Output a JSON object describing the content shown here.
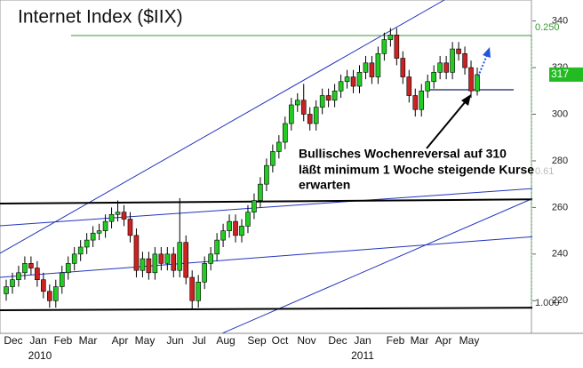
{
  "chart_data": {
    "type": "candlestick",
    "title": "Internet Index ($IIX)",
    "months": [
      "Dec",
      "Jan",
      "Feb",
      "Mar",
      "Apr",
      "May",
      "Jun",
      "Jul",
      "Aug",
      "Sep",
      "Oct",
      "Nov",
      "Dec",
      "Jan",
      "Feb",
      "Mar",
      "Apr",
      "May"
    ],
    "years": [
      "2010",
      "2011"
    ],
    "open": [
      223,
      226,
      229,
      232,
      236,
      234,
      229,
      224,
      220,
      226,
      232,
      236,
      240,
      243,
      246,
      249,
      250,
      254,
      257,
      258,
      255,
      248,
      233,
      238,
      232,
      240,
      236,
      240,
      233,
      245,
      230,
      220,
      228,
      236,
      240,
      246,
      250,
      254,
      248,
      252,
      258,
      263,
      270,
      278,
      284,
      288,
      296,
      304,
      306,
      300,
      296,
      303,
      308,
      306,
      310,
      314,
      316,
      312,
      318,
      322,
      316,
      326,
      332,
      334,
      324,
      316,
      308,
      302,
      310,
      314,
      318,
      322,
      318,
      328,
      326,
      320,
      310
    ],
    "high": [
      229,
      232,
      235,
      239,
      239,
      237,
      232,
      227,
      229,
      235,
      239,
      243,
      246,
      249,
      252,
      253,
      257,
      260,
      263,
      261,
      258,
      251,
      241,
      241,
      243,
      243,
      243,
      243,
      264,
      248,
      233,
      231,
      239,
      243,
      249,
      253,
      257,
      257,
      255,
      261,
      266,
      273,
      281,
      287,
      291,
      299,
      307,
      309,
      313,
      303,
      306,
      311,
      311,
      313,
      317,
      319,
      319,
      321,
      325,
      325,
      329,
      335,
      337,
      337,
      327,
      319,
      311,
      313,
      317,
      321,
      325,
      325,
      331,
      331,
      329,
      323,
      320
    ],
    "low": [
      220,
      223,
      226,
      229,
      231,
      226,
      221,
      217,
      217,
      223,
      229,
      233,
      237,
      240,
      243,
      246,
      247,
      251,
      254,
      252,
      245,
      230,
      230,
      229,
      229,
      233,
      233,
      230,
      230,
      227,
      216,
      217,
      225,
      233,
      237,
      243,
      247,
      245,
      245,
      249,
      255,
      260,
      267,
      275,
      281,
      285,
      293,
      301,
      297,
      293,
      293,
      300,
      303,
      303,
      307,
      311,
      309,
      309,
      315,
      313,
      313,
      323,
      329,
      321,
      313,
      305,
      299,
      299,
      307,
      311,
      315,
      315,
      315,
      323,
      317,
      307,
      308
    ],
    "close": [
      226,
      229,
      232,
      236,
      234,
      229,
      224,
      220,
      226,
      232,
      236,
      240,
      243,
      246,
      249,
      250,
      254,
      257,
      258,
      255,
      248,
      233,
      238,
      232,
      240,
      236,
      240,
      233,
      245,
      230,
      220,
      228,
      236,
      240,
      246,
      250,
      254,
      248,
      252,
      258,
      263,
      270,
      278,
      284,
      288,
      296,
      304,
      306,
      300,
      296,
      303,
      308,
      306,
      310,
      314,
      316,
      312,
      318,
      322,
      316,
      326,
      332,
      334,
      324,
      316,
      308,
      302,
      310,
      314,
      318,
      322,
      318,
      328,
      326,
      320,
      310,
      317
    ],
    "up_color": "#22cc22",
    "down_color": "#cc2222",
    "ylim": [
      206,
      349
    ],
    "yticks": [
      220,
      240,
      260,
      280,
      300,
      320,
      340
    ],
    "last_price": 317,
    "levels": [
      "0.250",
      "0.61",
      "1.000"
    ],
    "annotation": [
      "Bullisches Wochenreversal auf 310",
      "läßt minimum 1 Woche steigende Kurse",
      "erwarten"
    ]
  }
}
